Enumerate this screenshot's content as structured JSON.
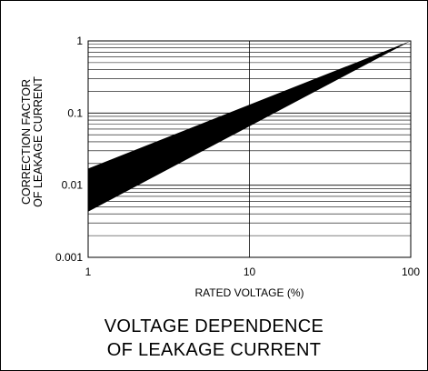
{
  "chart_data": {
    "type": "area",
    "title_lines": [
      "VOLTAGE DEPENDENCE",
      "OF LEAKAGE CURRENT"
    ],
    "xlabel": "RATED VOLTAGE (%)",
    "ylabel_lines": [
      "CORRECTION FACTOR",
      "OF LEAKAGE CURRENT"
    ],
    "x_scale": "log",
    "y_scale": "log",
    "xlim": [
      1,
      100
    ],
    "ylim": [
      0.001,
      1
    ],
    "x_ticks": [
      {
        "value": 1,
        "label": "1"
      },
      {
        "value": 10,
        "label": "10"
      },
      {
        "value": 100,
        "label": "100"
      }
    ],
    "y_ticks": [
      {
        "value": 0.001,
        "label": "0.001"
      },
      {
        "value": 0.01,
        "label": "0.01"
      },
      {
        "value": 0.1,
        "label": "0.1"
      },
      {
        "value": 1,
        "label": "1"
      }
    ],
    "grid": {
      "horizontal_minor": true,
      "vertical_major": true
    },
    "band": {
      "x": [
        1,
        100
      ],
      "upper": [
        0.017,
        1
      ],
      "lower": [
        0.0043,
        1
      ]
    },
    "colors": {
      "band": "#000000",
      "grid": "#000000",
      "frame": "#000000"
    }
  }
}
